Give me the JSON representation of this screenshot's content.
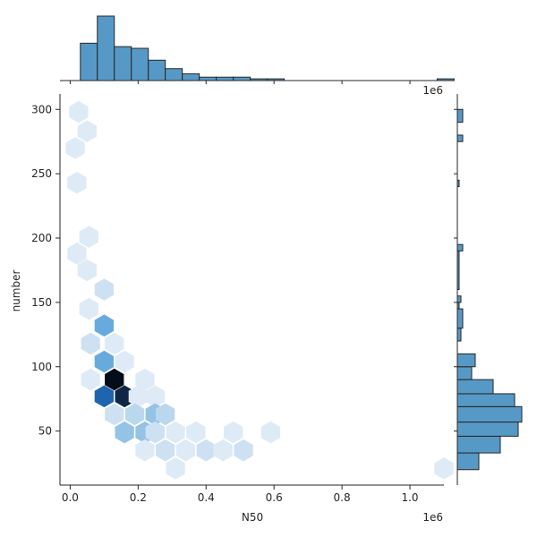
{
  "chart_data": {
    "type": "jointplot-hexbin",
    "xlabel": "N50",
    "ylabel": "number",
    "x_offset_label": "1e6",
    "marginal_x_offset_label": "1e6",
    "xlim": [
      -0.03,
      1.1
    ],
    "ylim": [
      8,
      312
    ],
    "xticks": [
      0.0,
      0.2,
      0.4,
      0.6,
      0.8,
      1.0
    ],
    "xtick_labels": [
      "0.0",
      "0.2",
      "0.4",
      "0.6",
      "0.8",
      "1.0"
    ],
    "yticks": [
      50,
      100,
      150,
      200,
      250,
      300
    ],
    "ytick_labels": [
      "50",
      "100",
      "150",
      "200",
      "250",
      "300"
    ],
    "colors": {
      "hist": "#5799c6",
      "edge": "#262626",
      "hex_max": "#050d18",
      "hex_light": "#deebf7"
    },
    "hexbins": [
      {
        "x": 0.025,
        "y": 298,
        "count": 1
      },
      {
        "x": 0.05,
        "y": 283,
        "count": 1
      },
      {
        "x": 0.015,
        "y": 270,
        "count": 1
      },
      {
        "x": 0.02,
        "y": 243,
        "count": 1
      },
      {
        "x": 0.055,
        "y": 201,
        "count": 1
      },
      {
        "x": 0.02,
        "y": 188,
        "count": 1
      },
      {
        "x": 0.05,
        "y": 175,
        "count": 1
      },
      {
        "x": 0.1,
        "y": 160,
        "count": 2
      },
      {
        "x": 0.055,
        "y": 145,
        "count": 1
      },
      {
        "x": 0.1,
        "y": 132,
        "count": 5
      },
      {
        "x": 0.06,
        "y": 118,
        "count": 2
      },
      {
        "x": 0.13,
        "y": 118,
        "count": 1
      },
      {
        "x": 0.1,
        "y": 104,
        "count": 5
      },
      {
        "x": 0.16,
        "y": 104,
        "count": 1
      },
      {
        "x": 0.06,
        "y": 90,
        "count": 1
      },
      {
        "x": 0.13,
        "y": 90,
        "count": 11
      },
      {
        "x": 0.22,
        "y": 90,
        "count": 1
      },
      {
        "x": 0.1,
        "y": 77,
        "count": 8
      },
      {
        "x": 0.16,
        "y": 77,
        "count": 10
      },
      {
        "x": 0.2,
        "y": 77,
        "count": 1
      },
      {
        "x": 0.25,
        "y": 77,
        "count": 1
      },
      {
        "x": 0.13,
        "y": 63,
        "count": 2
      },
      {
        "x": 0.19,
        "y": 63,
        "count": 3
      },
      {
        "x": 0.25,
        "y": 63,
        "count": 4
      },
      {
        "x": 0.28,
        "y": 63,
        "count": 3
      },
      {
        "x": 0.16,
        "y": 49,
        "count": 4
      },
      {
        "x": 0.22,
        "y": 49,
        "count": 4
      },
      {
        "x": 0.25,
        "y": 49,
        "count": 2
      },
      {
        "x": 0.31,
        "y": 49,
        "count": 1
      },
      {
        "x": 0.37,
        "y": 49,
        "count": 1
      },
      {
        "x": 0.48,
        "y": 49,
        "count": 1
      },
      {
        "x": 0.59,
        "y": 49,
        "count": 1
      },
      {
        "x": 0.22,
        "y": 35,
        "count": 1
      },
      {
        "x": 0.28,
        "y": 35,
        "count": 2
      },
      {
        "x": 0.34,
        "y": 35,
        "count": 1
      },
      {
        "x": 0.4,
        "y": 35,
        "count": 2
      },
      {
        "x": 0.45,
        "y": 35,
        "count": 1
      },
      {
        "x": 0.51,
        "y": 35,
        "count": 2
      },
      {
        "x": 0.31,
        "y": 21,
        "count": 1
      },
      {
        "x": 1.1,
        "y": 21,
        "count": 1
      }
    ],
    "marginal_x_hist": {
      "bin_edges": [
        0.03,
        0.08,
        0.13,
        0.18,
        0.23,
        0.28,
        0.33,
        0.38,
        0.43,
        0.48,
        0.53,
        0.58,
        0.63,
        0.68,
        0.73,
        0.78,
        0.83,
        0.88,
        0.93,
        0.98,
        1.03,
        1.08,
        1.13
      ],
      "counts": [
        11,
        19,
        10,
        9.5,
        6,
        3.5,
        2,
        1,
        1,
        1,
        0.5,
        0.5,
        0,
        0,
        0,
        0,
        0,
        0,
        0,
        0,
        0,
        0.5
      ]
    },
    "marginal_y_hist": {
      "bin_edges": [
        20,
        33,
        46,
        57,
        69,
        79,
        90,
        100,
        110,
        120,
        130,
        145,
        150,
        155,
        160,
        190,
        195,
        200,
        240,
        245,
        250,
        275,
        280,
        290,
        300
      ],
      "counts": [
        6,
        12,
        17,
        18,
        16,
        10,
        4,
        5,
        0,
        1,
        1.5,
        0.5,
        1,
        0,
        0.5,
        1.5,
        0,
        0,
        0.5,
        0,
        0,
        1.5,
        0,
        1.5
      ]
    }
  }
}
